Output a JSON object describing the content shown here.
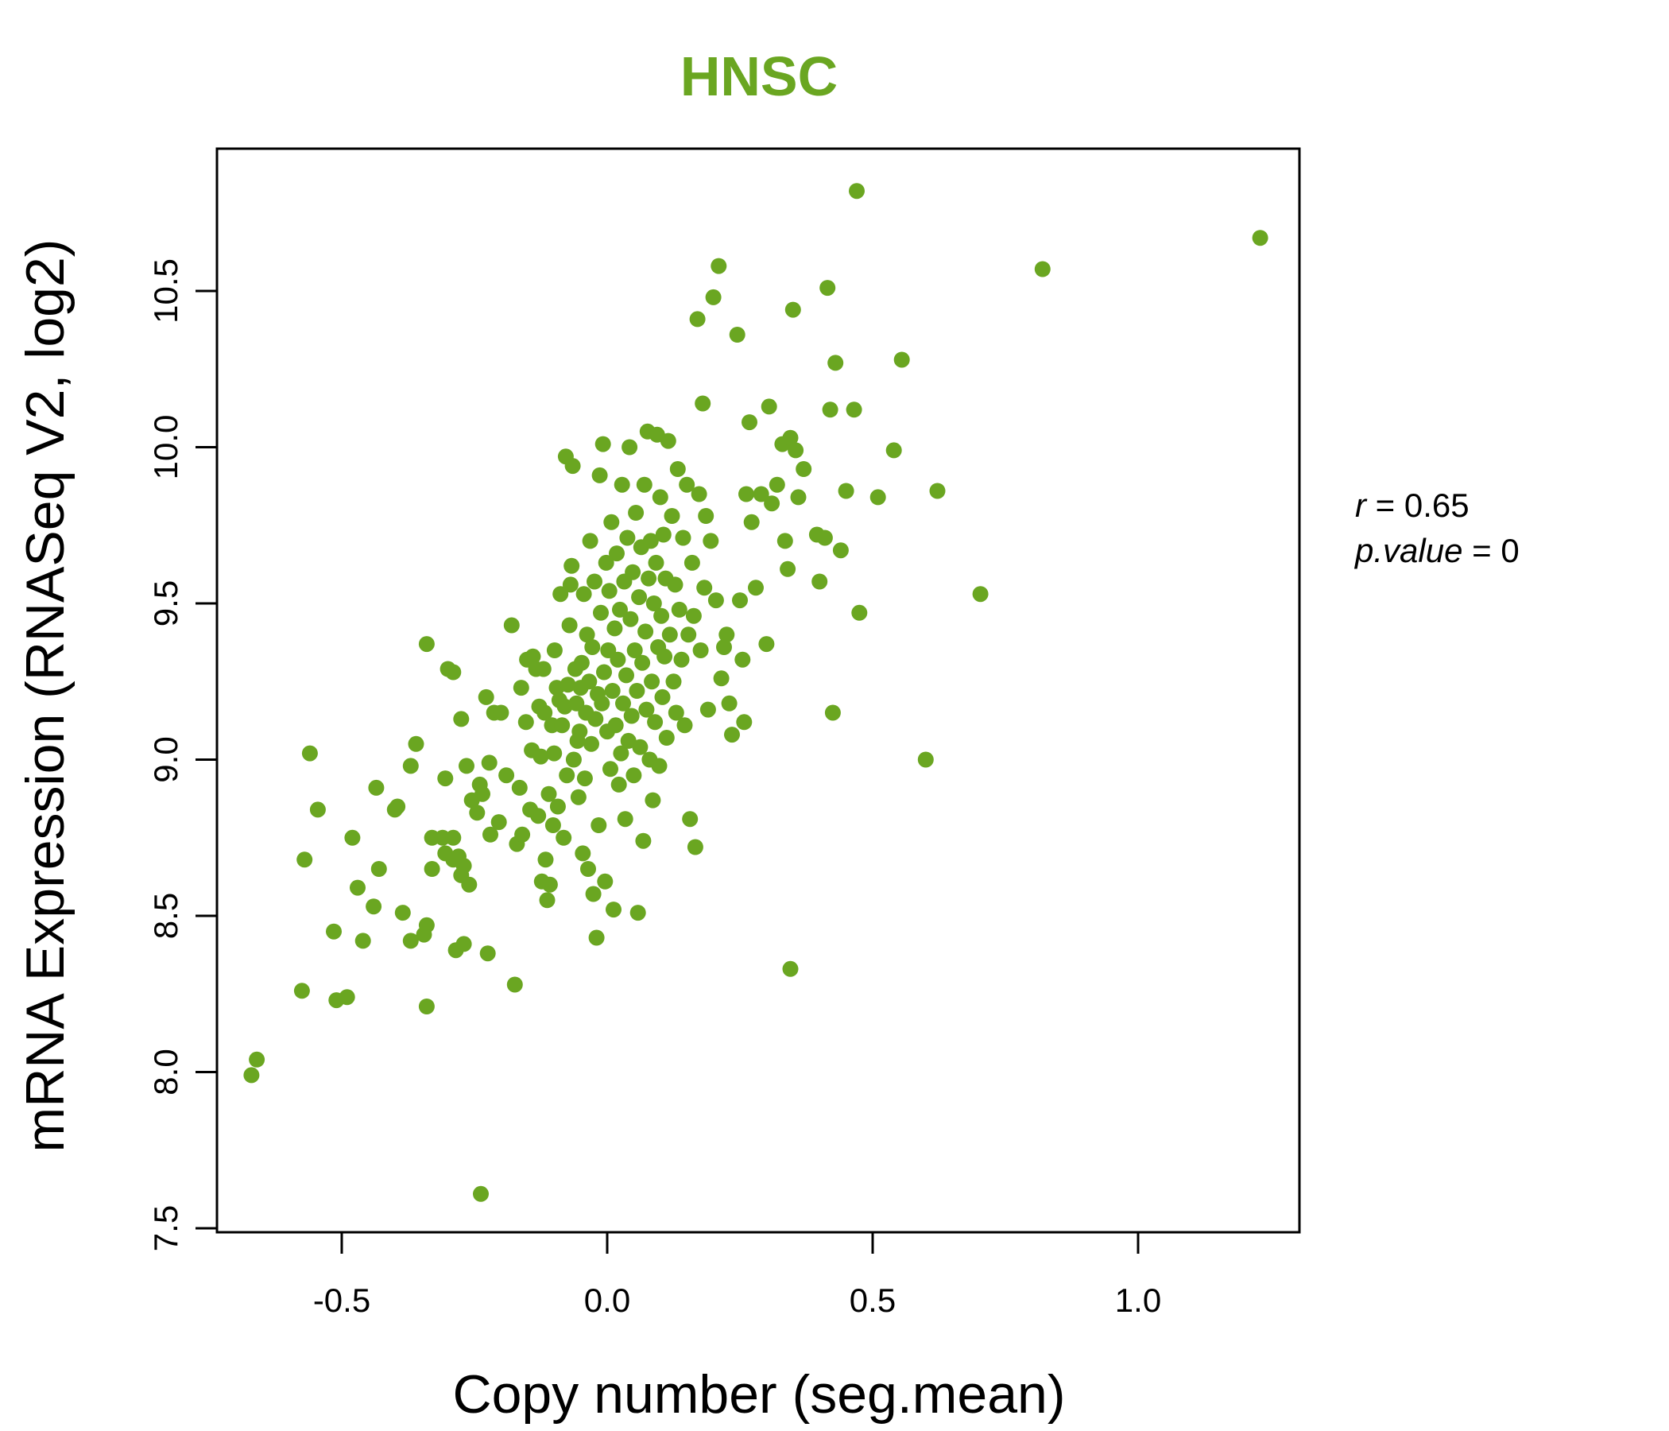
{
  "colors": {
    "accent": "#6aa621",
    "axis": "#000000",
    "background": "#ffffff"
  },
  "chart_data": {
    "type": "scatter",
    "title": "HNSC",
    "xlabel": "Copy number (seg.mean)",
    "ylabel": "mRNA Expression (RNASeq V2, log2)",
    "xlim": [
      -0.75,
      1.3
    ],
    "ylim": [
      7.5,
      10.95
    ],
    "x_ticks": [
      -0.5,
      0.0,
      0.5,
      1.0
    ],
    "x_tick_labels": [
      "-0.5",
      "0.0",
      "0.5",
      "1.0"
    ],
    "y_ticks": [
      7.5,
      8.0,
      8.5,
      9.0,
      9.5,
      10.0,
      10.5
    ],
    "y_tick_labels": [
      "7.5",
      "8.0",
      "8.5",
      "9.0",
      "9.5",
      "10.0",
      "10.5"
    ],
    "grid": false,
    "annotations": {
      "r_label": "r",
      "r_value": "0.65",
      "p_label": "p.value",
      "p_value": "0"
    },
    "points": [
      [
        -0.67,
        7.99
      ],
      [
        -0.66,
        8.04
      ],
      [
        -0.575,
        8.26
      ],
      [
        -0.57,
        8.68
      ],
      [
        -0.56,
        9.02
      ],
      [
        -0.545,
        8.84
      ],
      [
        -0.515,
        8.45
      ],
      [
        -0.51,
        8.23
      ],
      [
        -0.49,
        8.24
      ],
      [
        -0.48,
        8.75
      ],
      [
        -0.47,
        8.59
      ],
      [
        -0.46,
        8.42
      ],
      [
        -0.44,
        8.53
      ],
      [
        -0.435,
        8.91
      ],
      [
        -0.43,
        8.65
      ],
      [
        -0.4,
        8.84
      ],
      [
        -0.395,
        8.85
      ],
      [
        -0.385,
        8.51
      ],
      [
        -0.37,
        8.98
      ],
      [
        -0.37,
        8.42
      ],
      [
        -0.36,
        9.05
      ],
      [
        -0.345,
        8.44
      ],
      [
        -0.34,
        9.37
      ],
      [
        -0.34,
        8.47
      ],
      [
        -0.34,
        8.21
      ],
      [
        -0.33,
        8.65
      ],
      [
        -0.33,
        8.75
      ],
      [
        -0.31,
        8.75
      ],
      [
        -0.305,
        8.94
      ],
      [
        -0.305,
        8.7
      ],
      [
        -0.3,
        9.29
      ],
      [
        -0.29,
        9.28
      ],
      [
        -0.29,
        8.75
      ],
      [
        -0.29,
        8.68
      ],
      [
        -0.285,
        8.39
      ],
      [
        -0.28,
        8.69
      ],
      [
        -0.275,
        8.63
      ],
      [
        -0.275,
        9.13
      ],
      [
        -0.27,
        8.66
      ],
      [
        -0.27,
        8.41
      ],
      [
        -0.265,
        8.98
      ],
      [
        -0.26,
        8.6
      ],
      [
        -0.255,
        8.87
      ],
      [
        -0.245,
        8.83
      ],
      [
        -0.24,
        8.92
      ],
      [
        -0.238,
        7.61
      ],
      [
        -0.235,
        8.89
      ],
      [
        -0.228,
        9.2
      ],
      [
        -0.225,
        8.38
      ],
      [
        -0.222,
        8.99
      ],
      [
        -0.22,
        8.76
      ],
      [
        -0.213,
        9.15
      ],
      [
        -0.204,
        8.8
      ],
      [
        -0.2,
        9.15
      ],
      [
        -0.19,
        8.95
      ],
      [
        -0.18,
        9.43
      ],
      [
        -0.174,
        8.28
      ],
      [
        -0.17,
        8.73
      ],
      [
        -0.165,
        8.91
      ],
      [
        -0.162,
        9.23
      ],
      [
        -0.16,
        8.76
      ],
      [
        -0.153,
        9.12
      ],
      [
        -0.151,
        9.32
      ],
      [
        -0.145,
        8.84
      ],
      [
        -0.142,
        9.03
      ],
      [
        -0.14,
        9.33
      ],
      [
        -0.134,
        9.29
      ],
      [
        -0.13,
        8.82
      ],
      [
        -0.128,
        9.17
      ],
      [
        -0.125,
        9.01
      ],
      [
        -0.123,
        8.61
      ],
      [
        -0.12,
        9.29
      ],
      [
        -0.118,
        9.15
      ],
      [
        -0.116,
        8.68
      ],
      [
        -0.113,
        8.55
      ],
      [
        -0.11,
        8.89
      ],
      [
        -0.108,
        8.6
      ],
      [
        -0.104,
        9.11
      ],
      [
        -0.102,
        8.79
      ],
      [
        -0.1,
        9.02
      ],
      [
        -0.099,
        9.35
      ],
      [
        -0.095,
        9.23
      ],
      [
        -0.093,
        8.85
      ],
      [
        -0.09,
        9.19
      ],
      [
        -0.088,
        9.53
      ],
      [
        -0.085,
        9.11
      ],
      [
        -0.082,
        8.75
      ],
      [
        -0.08,
        9.17
      ],
      [
        -0.078,
        9.97
      ],
      [
        -0.076,
        8.95
      ],
      [
        -0.074,
        9.24
      ],
      [
        -0.071,
        9.43
      ],
      [
        -0.069,
        9.56
      ],
      [
        -0.067,
        9.62
      ],
      [
        -0.065,
        9.94
      ],
      [
        -0.063,
        9.0
      ],
      [
        -0.06,
        9.29
      ],
      [
        -0.058,
        9.18
      ],
      [
        -0.056,
        9.06
      ],
      [
        -0.054,
        8.88
      ],
      [
        -0.052,
        9.09
      ],
      [
        -0.05,
        9.23
      ],
      [
        -0.048,
        9.31
      ],
      [
        -0.046,
        8.7
      ],
      [
        -0.044,
        9.53
      ],
      [
        -0.042,
        8.94
      ],
      [
        -0.04,
        9.15
      ],
      [
        -0.038,
        9.4
      ],
      [
        -0.036,
        8.65
      ],
      [
        -0.034,
        9.25
      ],
      [
        -0.032,
        9.7
      ],
      [
        -0.03,
        9.05
      ],
      [
        -0.028,
        9.36
      ],
      [
        -0.026,
        8.57
      ],
      [
        -0.024,
        9.57
      ],
      [
        -0.022,
        9.13
      ],
      [
        -0.02,
        8.43
      ],
      [
        -0.018,
        9.21
      ],
      [
        -0.016,
        8.79
      ],
      [
        -0.014,
        9.91
      ],
      [
        -0.012,
        9.47
      ],
      [
        -0.01,
        9.18
      ],
      [
        -0.008,
        10.01
      ],
      [
        -0.006,
        9.28
      ],
      [
        -0.004,
        8.61
      ],
      [
        -0.002,
        9.63
      ],
      [
        0.0,
        9.09
      ],
      [
        0.002,
        9.35
      ],
      [
        0.004,
        9.54
      ],
      [
        0.006,
        8.97
      ],
      [
        0.008,
        9.76
      ],
      [
        0.01,
        9.22
      ],
      [
        0.012,
        8.52
      ],
      [
        0.014,
        9.42
      ],
      [
        0.016,
        9.11
      ],
      [
        0.018,
        9.66
      ],
      [
        0.02,
        9.32
      ],
      [
        0.022,
        8.92
      ],
      [
        0.024,
        9.48
      ],
      [
        0.026,
        9.02
      ],
      [
        0.028,
        9.88
      ],
      [
        0.03,
        9.18
      ],
      [
        0.032,
        9.57
      ],
      [
        0.034,
        8.81
      ],
      [
        0.036,
        9.27
      ],
      [
        0.038,
        9.71
      ],
      [
        0.04,
        9.06
      ],
      [
        0.042,
        10.0
      ],
      [
        0.044,
        9.45
      ],
      [
        0.046,
        9.14
      ],
      [
        0.048,
        9.6
      ],
      [
        0.05,
        8.95
      ],
      [
        0.052,
        9.35
      ],
      [
        0.054,
        9.79
      ],
      [
        0.056,
        9.22
      ],
      [
        0.058,
        8.51
      ],
      [
        0.06,
        9.52
      ],
      [
        0.062,
        9.04
      ],
      [
        0.064,
        9.68
      ],
      [
        0.066,
        9.31
      ],
      [
        0.068,
        8.74
      ],
      [
        0.07,
        9.88
      ],
      [
        0.072,
        9.41
      ],
      [
        0.074,
        9.16
      ],
      [
        0.076,
        10.05
      ],
      [
        0.078,
        9.58
      ],
      [
        0.08,
        9.0
      ],
      [
        0.082,
        9.7
      ],
      [
        0.084,
        9.25
      ],
      [
        0.086,
        8.87
      ],
      [
        0.088,
        9.5
      ],
      [
        0.09,
        9.12
      ],
      [
        0.092,
        9.63
      ],
      [
        0.094,
        10.04
      ],
      [
        0.096,
        9.36
      ],
      [
        0.098,
        8.98
      ],
      [
        0.1,
        9.84
      ],
      [
        0.102,
        9.46
      ],
      [
        0.104,
        9.2
      ],
      [
        0.106,
        9.72
      ],
      [
        0.108,
        9.33
      ],
      [
        0.11,
        9.58
      ],
      [
        0.112,
        9.07
      ],
      [
        0.115,
        10.02
      ],
      [
        0.118,
        9.4
      ],
      [
        0.122,
        9.78
      ],
      [
        0.125,
        9.25
      ],
      [
        0.128,
        9.56
      ],
      [
        0.13,
        9.15
      ],
      [
        0.133,
        9.93
      ],
      [
        0.136,
        9.48
      ],
      [
        0.14,
        9.32
      ],
      [
        0.143,
        9.71
      ],
      [
        0.146,
        9.11
      ],
      [
        0.15,
        9.88
      ],
      [
        0.153,
        9.4
      ],
      [
        0.156,
        8.81
      ],
      [
        0.16,
        9.63
      ],
      [
        0.163,
        9.46
      ],
      [
        0.166,
        8.72
      ],
      [
        0.17,
        10.41
      ],
      [
        0.173,
        9.85
      ],
      [
        0.176,
        9.35
      ],
      [
        0.18,
        10.14
      ],
      [
        0.183,
        9.55
      ],
      [
        0.186,
        9.78
      ],
      [
        0.19,
        9.16
      ],
      [
        0.195,
        9.7
      ],
      [
        0.2,
        10.48
      ],
      [
        0.205,
        9.51
      ],
      [
        0.21,
        10.58
      ],
      [
        0.215,
        9.26
      ],
      [
        0.22,
        9.36
      ],
      [
        0.225,
        9.4
      ],
      [
        0.23,
        9.18
      ],
      [
        0.235,
        9.08
      ],
      [
        0.245,
        10.36
      ],
      [
        0.25,
        9.51
      ],
      [
        0.255,
        9.32
      ],
      [
        0.258,
        9.12
      ],
      [
        0.262,
        9.85
      ],
      [
        0.268,
        10.08
      ],
      [
        0.272,
        9.76
      ],
      [
        0.28,
        9.55
      ],
      [
        0.29,
        9.85
      ],
      [
        0.3,
        9.37
      ],
      [
        0.305,
        10.13
      ],
      [
        0.31,
        9.82
      ],
      [
        0.32,
        9.88
      ],
      [
        0.33,
        10.01
      ],
      [
        0.335,
        9.7
      ],
      [
        0.34,
        9.61
      ],
      [
        0.345,
        10.03
      ],
      [
        0.35,
        10.44
      ],
      [
        0.355,
        9.99
      ],
      [
        0.36,
        9.84
      ],
      [
        0.37,
        9.93
      ],
      [
        0.395,
        9.72
      ],
      [
        0.4,
        9.57
      ],
      [
        0.41,
        9.71
      ],
      [
        0.415,
        10.51
      ],
      [
        0.42,
        10.12
      ],
      [
        0.425,
        9.15
      ],
      [
        0.43,
        10.27
      ],
      [
        0.44,
        9.67
      ],
      [
        0.45,
        9.86
      ],
      [
        0.465,
        10.12
      ],
      [
        0.47,
        10.82
      ],
      [
        0.475,
        9.47
      ],
      [
        0.51,
        9.84
      ],
      [
        0.54,
        9.99
      ],
      [
        0.555,
        10.28
      ],
      [
        0.6,
        9.0
      ],
      [
        0.622,
        9.86
      ],
      [
        0.703,
        9.53
      ],
      [
        0.82,
        10.57
      ],
      [
        1.23,
        10.67
      ],
      [
        0.345,
        8.33
      ]
    ]
  }
}
